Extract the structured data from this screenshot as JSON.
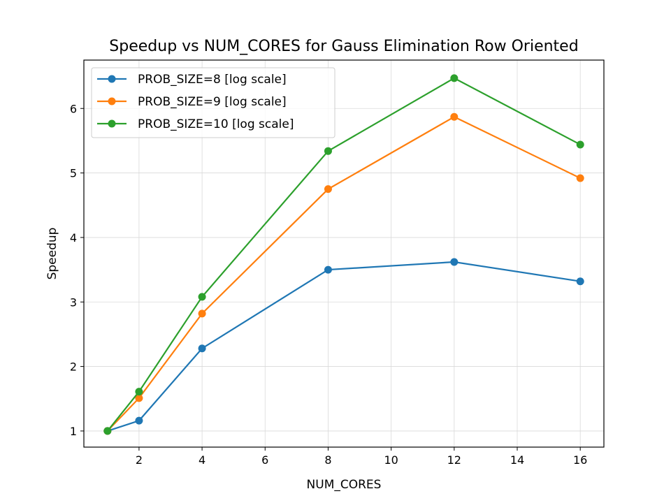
{
  "chart_data": {
    "type": "line",
    "title": "Speedup vs NUM_CORES for Gauss Elimination Row Oriented",
    "xlabel": "NUM_CORES",
    "ylabel": "Speedup",
    "x": [
      1,
      2,
      4,
      8,
      12,
      16
    ],
    "xlim": [
      0.25,
      16.75
    ],
    "ylim": [
      0.75,
      6.75
    ],
    "xticks": [
      2,
      4,
      6,
      8,
      10,
      12,
      14,
      16
    ],
    "yticks": [
      1,
      2,
      3,
      4,
      5,
      6
    ],
    "grid": true,
    "legend_position": "top-left",
    "series": [
      {
        "name": "PROB_SIZE=8 [log scale]",
        "color": "#1f77b4",
        "values": [
          1.0,
          1.16,
          2.28,
          3.5,
          3.62,
          3.32
        ]
      },
      {
        "name": "PROB_SIZE=9 [log scale]",
        "color": "#ff7f0e",
        "values": [
          1.0,
          1.51,
          2.82,
          4.75,
          5.87,
          4.92
        ]
      },
      {
        "name": "PROB_SIZE=10 [log scale]",
        "color": "#2ca02c",
        "values": [
          1.0,
          1.61,
          3.08,
          5.34,
          6.47,
          5.44
        ]
      }
    ]
  }
}
